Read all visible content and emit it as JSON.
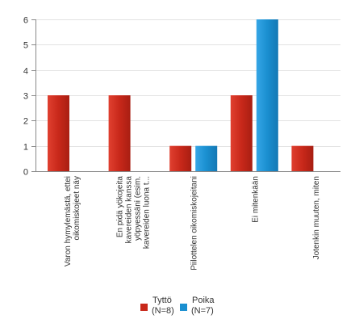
{
  "chart_data": {
    "type": "bar",
    "title": "",
    "xlabel": "",
    "ylabel": "",
    "ylim": [
      0,
      6
    ],
    "yticks": [
      0,
      1,
      2,
      3,
      4,
      5,
      6
    ],
    "grid": true,
    "legend_position": "bottom",
    "categories": [
      [
        "Varon hymylemästä, ettei",
        "oikomiskojeet näy"
      ],
      [
        "En pidä yökojeita",
        "kavereiden kanssa",
        "yöpyessäni (esim.",
        "kavereiden luona t..."
      ],
      [
        "Piilottelen oikomiskojeitani"
      ],
      [
        "Ei mitenkään"
      ],
      [
        "Jotenkin muuten, miten"
      ]
    ],
    "series": [
      {
        "name_line1": "Tyttö",
        "name_line2": "(N=8)",
        "color": "#c8281a",
        "values": [
          3,
          3,
          1,
          3,
          1
        ]
      },
      {
        "name_line1": "Poika",
        "name_line2": "(N=7)",
        "color": "#1a8fd0",
        "values": [
          0,
          0,
          1,
          6,
          0
        ]
      }
    ]
  }
}
